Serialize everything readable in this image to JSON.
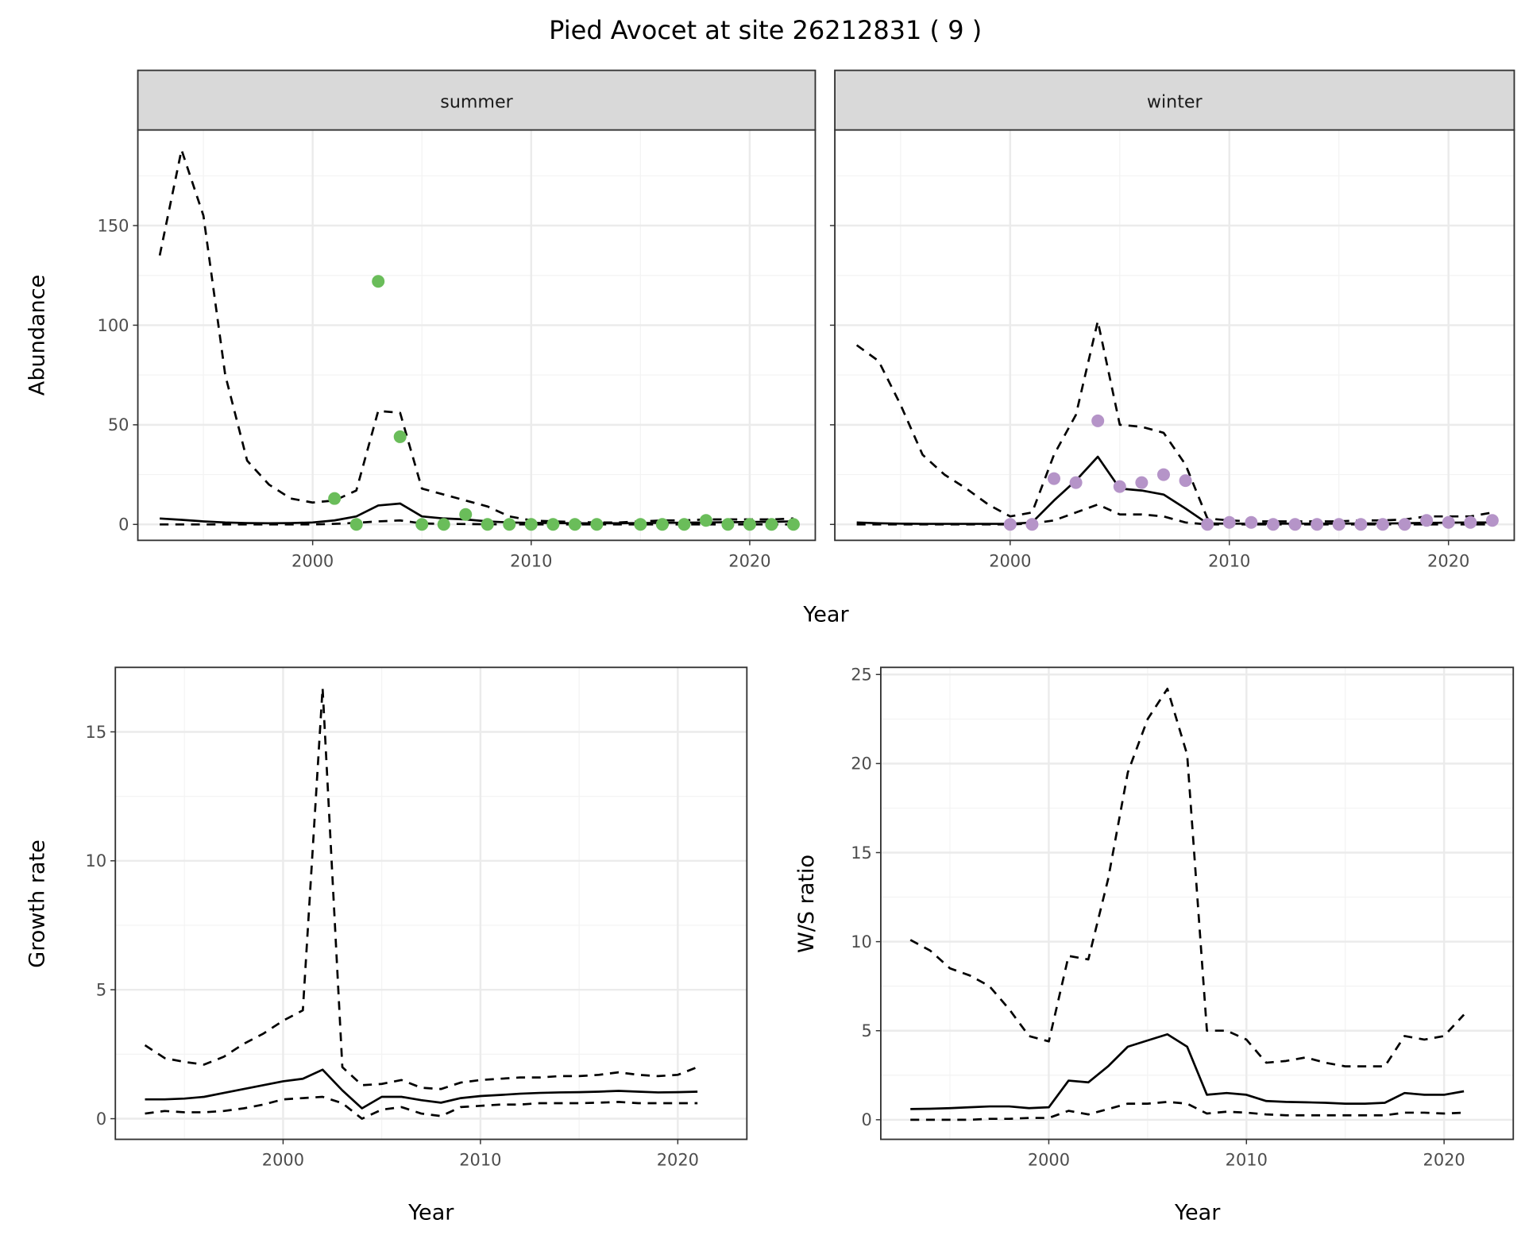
{
  "title": "Pied Avocet at site 26212831 ( 9 )",
  "colors": {
    "summer_points": "#6ABD5A",
    "winter_points": "#B594C8",
    "lines": "#000000"
  },
  "chart_data": [
    {
      "type": "line",
      "panel": "summer",
      "strip_label": "summer",
      "xlabel": "Year",
      "ylabel": "Abundance",
      "xlim": [
        1992,
        2023
      ],
      "ylim": [
        -8,
        198
      ],
      "xticks": [
        2000,
        2010,
        2020
      ],
      "yticks": [
        0,
        50,
        100,
        150
      ],
      "grid": true,
      "x": [
        1993,
        1994,
        1995,
        1996,
        1997,
        1998,
        1999,
        2000,
        2001,
        2002,
        2003,
        2004,
        2005,
        2006,
        2007,
        2008,
        2009,
        2010,
        2011,
        2012,
        2013,
        2014,
        2015,
        2016,
        2017,
        2018,
        2019,
        2020,
        2021,
        2022
      ],
      "series": [
        {
          "style": "solid",
          "values": [
            3,
            2.3,
            1.5,
            1,
            0.7,
            0.6,
            0.7,
            1,
            2,
            4,
            9.5,
            10.5,
            4,
            3,
            2.5,
            1.5,
            1,
            0.8,
            0.7,
            0.6,
            0.6,
            0.6,
            0.7,
            0.8,
            0.9,
            1,
            1.1,
            1.2,
            1.3,
            1.5
          ]
        },
        {
          "style": "dashed",
          "values": [
            135,
            188,
            155,
            75,
            32,
            20,
            13,
            11,
            12,
            17,
            57,
            56,
            18,
            15,
            12,
            9,
            4,
            2,
            1.5,
            1.2,
            1,
            1,
            1.5,
            2,
            2,
            2.5,
            2.5,
            2.5,
            2.5,
            3
          ]
        },
        {
          "style": "dashed",
          "values": [
            0,
            0,
            0,
            0,
            0,
            0,
            0,
            0,
            0.3,
            0.8,
            1.5,
            2,
            0.5,
            0.3,
            0.2,
            0.1,
            0,
            0,
            0,
            0,
            0,
            0,
            0,
            0,
            0,
            0,
            0,
            0,
            0,
            0
          ]
        }
      ],
      "points": {
        "x": [
          2001,
          2002,
          2003,
          2004,
          2005,
          2006,
          2007,
          2008,
          2009,
          2010,
          2011,
          2012,
          2013,
          2015,
          2016,
          2017,
          2018,
          2019,
          2020,
          2021,
          2022
        ],
        "y": [
          13,
          0,
          122,
          44,
          0,
          0,
          5,
          0,
          0,
          0,
          0,
          0,
          0,
          0,
          0,
          0,
          2,
          0,
          0,
          0,
          0
        ]
      }
    },
    {
      "type": "line",
      "panel": "winter",
      "strip_label": "winter",
      "xlabel": "Year",
      "ylabel": "Abundance",
      "xlim": [
        1992,
        2023
      ],
      "ylim": [
        -8,
        198
      ],
      "xticks": [
        2000,
        2010,
        2020
      ],
      "yticks": [
        0,
        50,
        100,
        150
      ],
      "grid": true,
      "x": [
        1993,
        1994,
        1995,
        1996,
        1997,
        1998,
        1999,
        2000,
        2001,
        2002,
        2003,
        2004,
        2005,
        2006,
        2007,
        2008,
        2009,
        2010,
        2011,
        2012,
        2013,
        2014,
        2015,
        2016,
        2017,
        2018,
        2019,
        2020,
        2021,
        2022
      ],
      "series": [
        {
          "style": "solid",
          "values": [
            1,
            0.6,
            0.4,
            0.3,
            0.3,
            0.3,
            0.3,
            0.3,
            1,
            12,
            22,
            34,
            18,
            17,
            15,
            8,
            0.5,
            0.4,
            0.4,
            0.4,
            0.4,
            0.4,
            0.4,
            0.5,
            0.5,
            0.6,
            0.8,
            0.9,
            1,
            1
          ]
        },
        {
          "style": "dashed",
          "values": [
            90,
            82,
            60,
            35,
            25,
            18,
            10,
            4,
            6,
            35,
            55,
            102,
            50,
            49,
            46,
            30,
            3,
            2,
            1.5,
            1.5,
            1.5,
            1.5,
            1.5,
            2,
            2,
            2.5,
            4,
            4,
            4,
            6
          ]
        },
        {
          "style": "dashed",
          "values": [
            0,
            0,
            0,
            0,
            0,
            0,
            0,
            0,
            0.5,
            2,
            6,
            10,
            5,
            5,
            4,
            1,
            0,
            0,
            0,
            0,
            0,
            0,
            0,
            0,
            0,
            0,
            0,
            0,
            0,
            0
          ]
        }
      ],
      "points": {
        "x": [
          2000,
          2001,
          2002,
          2003,
          2004,
          2005,
          2006,
          2007,
          2008,
          2009,
          2010,
          2011,
          2012,
          2013,
          2014,
          2015,
          2016,
          2017,
          2018,
          2019,
          2020,
          2021,
          2022
        ],
        "y": [
          0,
          0,
          23,
          21,
          52,
          19,
          21,
          25,
          22,
          0,
          1,
          1,
          0,
          0,
          0,
          0,
          0,
          0,
          0,
          2,
          1,
          1,
          2
        ]
      }
    },
    {
      "type": "line",
      "panel": "growth",
      "xlabel": "Year",
      "ylabel": "Growth rate",
      "xlim": [
        1991.5,
        2023.5
      ],
      "ylim": [
        -0.8,
        17.5
      ],
      "xticks": [
        2000,
        2010,
        2020
      ],
      "yticks": [
        0,
        5,
        10,
        15
      ],
      "grid": true,
      "x": [
        1993,
        1994,
        1995,
        1996,
        1997,
        1998,
        1999,
        2000,
        2001,
        2002,
        2003,
        2004,
        2005,
        2006,
        2007,
        2008,
        2009,
        2010,
        2011,
        2012,
        2013,
        2014,
        2015,
        2016,
        2017,
        2018,
        2019,
        2020,
        2021
      ],
      "series": [
        {
          "style": "solid",
          "values": [
            0.75,
            0.75,
            0.78,
            0.85,
            1.0,
            1.15,
            1.3,
            1.45,
            1.55,
            1.9,
            1.1,
            0.4,
            0.85,
            0.85,
            0.72,
            0.62,
            0.8,
            0.88,
            0.92,
            0.97,
            1.0,
            1.02,
            1.03,
            1.05,
            1.08,
            1.05,
            1.02,
            1.03,
            1.05
          ]
        },
        {
          "style": "dashed",
          "values": [
            2.85,
            2.35,
            2.2,
            2.1,
            2.4,
            2.9,
            3.3,
            3.8,
            4.2,
            16.7,
            2.0,
            1.3,
            1.35,
            1.5,
            1.2,
            1.15,
            1.4,
            1.5,
            1.55,
            1.6,
            1.6,
            1.65,
            1.65,
            1.7,
            1.8,
            1.7,
            1.65,
            1.7,
            2.0
          ]
        },
        {
          "style": "dashed",
          "values": [
            0.2,
            0.3,
            0.25,
            0.25,
            0.3,
            0.4,
            0.55,
            0.75,
            0.8,
            0.85,
            0.6,
            0.0,
            0.35,
            0.45,
            0.2,
            0.1,
            0.45,
            0.5,
            0.55,
            0.55,
            0.6,
            0.6,
            0.6,
            0.62,
            0.65,
            0.6,
            0.6,
            0.6,
            0.6
          ]
        }
      ]
    },
    {
      "type": "line",
      "panel": "ratio",
      "xlabel": "Year",
      "ylabel": "W/S ratio",
      "xlim": [
        1991.5,
        2023.5
      ],
      "ylim": [
        -1.1,
        25.4
      ],
      "xticks": [
        2000,
        2010,
        2020
      ],
      "yticks": [
        0,
        5,
        10,
        15,
        20,
        25
      ],
      "grid": true,
      "x": [
        1993,
        1994,
        1995,
        1996,
        1997,
        1998,
        1999,
        2000,
        2001,
        2002,
        2003,
        2004,
        2005,
        2006,
        2007,
        2008,
        2009,
        2010,
        2011,
        2012,
        2013,
        2014,
        2015,
        2016,
        2017,
        2018,
        2019,
        2020,
        2021
      ],
      "series": [
        {
          "style": "solid",
          "values": [
            0.6,
            0.62,
            0.65,
            0.7,
            0.75,
            0.75,
            0.65,
            0.7,
            2.2,
            2.1,
            3.0,
            4.1,
            4.45,
            4.8,
            4.1,
            1.4,
            1.5,
            1.4,
            1.05,
            1.0,
            0.98,
            0.95,
            0.9,
            0.9,
            0.95,
            1.5,
            1.4,
            1.4,
            1.6
          ]
        },
        {
          "style": "dashed",
          "values": [
            10.1,
            9.5,
            8.5,
            8.1,
            7.5,
            6.2,
            4.7,
            4.4,
            9.2,
            9.0,
            13.5,
            19.5,
            22.5,
            24.2,
            20.5,
            5.0,
            5.0,
            4.5,
            3.2,
            3.3,
            3.5,
            3.2,
            3.0,
            3.0,
            3.0,
            4.7,
            4.5,
            4.7,
            5.9
          ]
        },
        {
          "style": "dashed",
          "values": [
            0,
            0,
            0,
            0,
            0.05,
            0.05,
            0.1,
            0.1,
            0.5,
            0.3,
            0.6,
            0.9,
            0.9,
            1.0,
            0.9,
            0.35,
            0.45,
            0.4,
            0.3,
            0.25,
            0.25,
            0.25,
            0.25,
            0.25,
            0.25,
            0.4,
            0.4,
            0.35,
            0.4
          ]
        }
      ]
    }
  ]
}
